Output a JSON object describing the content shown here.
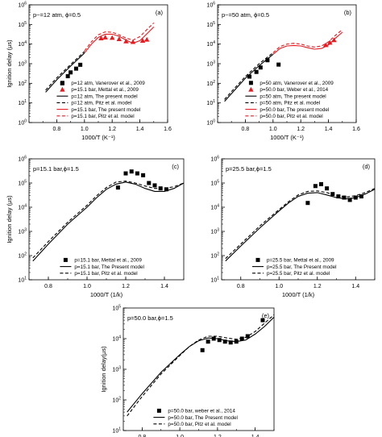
{
  "chart_data": [
    {
      "id": "a",
      "type": "line",
      "panel_label": "(a)",
      "condition": "p~=12 atm, ϕ=0.5",
      "xlabel": "1000/T (K⁻¹)",
      "ylabel": "Ignition delay (μs)",
      "xlim": [
        0.6,
        1.6
      ],
      "xticks": [
        0.8,
        1.0,
        1.2,
        1.4,
        1.6
      ],
      "ylim_exp": [
        0,
        6
      ],
      "yticks_exp": [
        0,
        1,
        2,
        3,
        4,
        5,
        6
      ],
      "legend_position": "bottom-right",
      "series": [
        {
          "name": "p=12 atm, Vanerover et al., 2009",
          "style": "square",
          "color": "#000000",
          "points": [
            [
              0.84,
              100
            ],
            [
              0.88,
              230
            ],
            [
              0.9,
              360
            ],
            [
              0.94,
              560
            ],
            [
              0.97,
              880
            ]
          ]
        },
        {
          "name": "p=15.1 bar, Mettal et al., 2009",
          "style": "triangle",
          "color": "#e8191f",
          "points": [
            [
              1.12,
              20000
            ],
            [
              1.15,
              22000
            ],
            [
              1.2,
              21000
            ],
            [
              1.25,
              18000
            ],
            [
              1.3,
              14000
            ],
            [
              1.35,
              13000
            ],
            [
              1.42,
              15000
            ],
            [
              1.45,
              17000
            ]
          ]
        },
        {
          "name": "p=12 atm, The present model",
          "style": "solid",
          "color": "#000000",
          "points": [
            [
              0.72,
              35
            ],
            [
              0.8,
              150
            ],
            [
              0.9,
              750
            ],
            [
              1.0,
              3500
            ]
          ]
        },
        {
          "name": "p=12 atm,  Pitz et al. model",
          "style": "dashed",
          "color": "#000000",
          "points": [
            [
              0.72,
              45
            ],
            [
              0.8,
              190
            ],
            [
              0.9,
              900
            ],
            [
              1.0,
              4200
            ]
          ]
        },
        {
          "name": "p=15.1 bar, The present model",
          "style": "solid",
          "color": "#e8191f",
          "points": [
            [
              1.0,
              3500
            ],
            [
              1.05,
              10000
            ],
            [
              1.1,
              22000
            ],
            [
              1.15,
              32000
            ],
            [
              1.2,
              32000
            ],
            [
              1.25,
              25000
            ],
            [
              1.3,
              16000
            ],
            [
              1.35,
              11000
            ],
            [
              1.4,
              15000
            ],
            [
              1.45,
              33000
            ],
            [
              1.5,
              75000
            ]
          ]
        },
        {
          "name": "p=15.1 bar,  Pitz et al. model",
          "style": "dashed",
          "color": "#e8191f",
          "points": [
            [
              1.0,
              4500
            ],
            [
              1.05,
              13000
            ],
            [
              1.1,
              30000
            ],
            [
              1.15,
              42000
            ],
            [
              1.2,
              40000
            ],
            [
              1.25,
              30000
            ],
            [
              1.3,
              20000
            ],
            [
              1.35,
              16000
            ],
            [
              1.4,
              24000
            ],
            [
              1.45,
              55000
            ],
            [
              1.5,
              120000
            ]
          ]
        }
      ]
    },
    {
      "id": "b",
      "type": "line",
      "panel_label": "(b)",
      "condition": "p~=50 atm, ϕ=0.5",
      "xlabel": "1000/T (K⁻¹)",
      "ylabel": "",
      "xlim": [
        0.6,
        1.6
      ],
      "xticks": [
        0.8,
        1.0,
        1.2,
        1.4,
        1.6
      ],
      "ylim_exp": [
        0,
        6
      ],
      "yticks_exp": [
        0,
        1,
        2,
        3,
        4,
        5,
        6
      ],
      "legend_position": "bottom-right",
      "series": [
        {
          "name": "p=50 atm, Vanerover et al., 2009",
          "style": "square",
          "color": "#000000",
          "points": [
            [
              0.83,
              220
            ],
            [
              0.88,
              380
            ],
            [
              0.91,
              640
            ],
            [
              0.96,
              1500
            ],
            [
              1.04,
              900
            ]
          ]
        },
        {
          "name": "p=50.0 bar, Weber et al., 2014",
          "style": "triangle",
          "color": "#e8191f",
          "points": [
            [
              1.38,
              9000
            ],
            [
              1.41,
              12000
            ],
            [
              1.44,
              16000
            ]
          ]
        },
        {
          "name": "p=50 atm, The present model",
          "style": "solid",
          "color": "#000000",
          "points": [
            [
              0.65,
              12
            ],
            [
              0.7,
              30
            ],
            [
              0.8,
              180
            ],
            [
              0.9,
              800
            ],
            [
              1.0,
              3000
            ]
          ]
        },
        {
          "name": "p=50 atm,  Pitz et al. model",
          "style": "dashed",
          "color": "#000000",
          "points": [
            [
              0.65,
              15
            ],
            [
              0.7,
              38
            ],
            [
              0.8,
              220
            ],
            [
              0.9,
              1000
            ],
            [
              1.0,
              3600
            ]
          ]
        },
        {
          "name": "p=50.0 bar, The present model",
          "style": "solid",
          "color": "#e8191f",
          "points": [
            [
              1.0,
              3000
            ],
            [
              1.05,
              6000
            ],
            [
              1.1,
              8000
            ],
            [
              1.15,
              8500
            ],
            [
              1.2,
              8000
            ],
            [
              1.25,
              6500
            ],
            [
              1.3,
              5500
            ],
            [
              1.35,
              6000
            ],
            [
              1.4,
              9000
            ],
            [
              1.45,
              20000
            ],
            [
              1.5,
              40000
            ]
          ]
        },
        {
          "name": "p=50.0 bar,  Pitz et al. model",
          "style": "dashed",
          "color": "#e8191f",
          "points": [
            [
              1.0,
              3600
            ],
            [
              1.05,
              7500
            ],
            [
              1.1,
              10000
            ],
            [
              1.15,
              11000
            ],
            [
              1.2,
              10000
            ],
            [
              1.25,
              8000
            ],
            [
              1.3,
              7000
            ],
            [
              1.35,
              8000
            ],
            [
              1.4,
              13000
            ],
            [
              1.45,
              28000
            ],
            [
              1.5,
              55000
            ]
          ]
        }
      ]
    },
    {
      "id": "c",
      "type": "line",
      "panel_label": "(c)",
      "condition": "p=15.1 bar,ϕ=1.5",
      "xlabel": "1000/T (1/k)",
      "ylabel": "Ignition delay (μs)",
      "xlim": [
        0.7,
        1.5
      ],
      "xticks": [
        0.8,
        1.0,
        1.2,
        1.4
      ],
      "ylim_exp": [
        1,
        6
      ],
      "yticks_exp": [
        1,
        2,
        3,
        4,
        5,
        6
      ],
      "legend_position": "bottom-right",
      "series": [
        {
          "name": "p=15.1 bar, Mettal et al., 2009",
          "style": "square",
          "color": "#000000",
          "points": [
            [
              1.16,
              65000
            ],
            [
              1.2,
              250000
            ],
            [
              1.23,
              300000
            ],
            [
              1.26,
              250000
            ],
            [
              1.29,
              210000
            ],
            [
              1.32,
              100000
            ],
            [
              1.35,
              80000
            ],
            [
              1.38,
              60000
            ],
            [
              1.41,
              55000
            ]
          ]
        },
        {
          "name": "p=15.1 bar, The Present model",
          "style": "solid",
          "color": "#000000",
          "points": [
            [
              0.72,
              60
            ],
            [
              0.8,
              300
            ],
            [
              0.9,
              2000
            ],
            [
              1.0,
              10000
            ],
            [
              1.05,
              25000
            ],
            [
              1.1,
              55000
            ],
            [
              1.15,
              90000
            ],
            [
              1.2,
              110000
            ],
            [
              1.25,
              90000
            ],
            [
              1.3,
              60000
            ],
            [
              1.35,
              45000
            ],
            [
              1.4,
              45000
            ],
            [
              1.45,
              60000
            ],
            [
              1.5,
              100000
            ]
          ]
        },
        {
          "name": "p=15.1 bar, Pitz et al. model",
          "style": "dashed",
          "color": "#000000",
          "points": [
            [
              0.72,
              80
            ],
            [
              0.8,
              380
            ],
            [
              0.9,
              2400
            ],
            [
              1.0,
              12000
            ],
            [
              1.05,
              30000
            ],
            [
              1.1,
              65000
            ],
            [
              1.15,
              110000
            ],
            [
              1.2,
              120000
            ],
            [
              1.25,
              100000
            ],
            [
              1.3,
              75000
            ],
            [
              1.35,
              60000
            ],
            [
              1.4,
              60000
            ],
            [
              1.45,
              70000
            ],
            [
              1.5,
              100000
            ]
          ]
        }
      ]
    },
    {
      "id": "d",
      "type": "line",
      "panel_label": "(d)",
      "condition": "p=25.5 bar,ϕ=1.5",
      "xlabel": "1000/T (1/k)",
      "ylabel": "",
      "xlim": [
        0.7,
        1.5
      ],
      "xticks": [
        0.8,
        1.0,
        1.2,
        1.4
      ],
      "ylim_exp": [
        1,
        6
      ],
      "yticks_exp": [
        1,
        2,
        3,
        4,
        5,
        6
      ],
      "legend_position": "bottom-right",
      "series": [
        {
          "name": "p=25.5 bar, Mettal et al., 2009",
          "style": "square",
          "color": "#000000",
          "points": [
            [
              1.15,
              15000
            ],
            [
              1.19,
              75000
            ],
            [
              1.22,
              90000
            ],
            [
              1.25,
              60000
            ],
            [
              1.28,
              35000
            ],
            [
              1.31,
              28000
            ],
            [
              1.34,
              25000
            ],
            [
              1.37,
              20000
            ],
            [
              1.4,
              25000
            ],
            [
              1.43,
              28000
            ]
          ]
        },
        {
          "name": "p=25.5 bar, The Present model",
          "style": "solid",
          "color": "#000000",
          "points": [
            [
              0.72,
              60
            ],
            [
              0.8,
              250
            ],
            [
              0.9,
              1400
            ],
            [
              1.0,
              7000
            ],
            [
              1.05,
              15000
            ],
            [
              1.1,
              28000
            ],
            [
              1.15,
              38000
            ],
            [
              1.2,
              40000
            ],
            [
              1.25,
              32000
            ],
            [
              1.3,
              25000
            ],
            [
              1.35,
              22000
            ],
            [
              1.4,
              25000
            ],
            [
              1.45,
              35000
            ],
            [
              1.5,
              55000
            ]
          ]
        },
        {
          "name": "p=25.5 bar, Pitz et al. model",
          "style": "dashed",
          "color": "#000000",
          "points": [
            [
              0.72,
              75
            ],
            [
              0.8,
              300
            ],
            [
              0.9,
              1700
            ],
            [
              1.0,
              8000
            ],
            [
              1.05,
              17000
            ],
            [
              1.1,
              32000
            ],
            [
              1.15,
              45000
            ],
            [
              1.2,
              47000
            ],
            [
              1.25,
              40000
            ],
            [
              1.3,
              30000
            ],
            [
              1.35,
              26000
            ],
            [
              1.4,
              30000
            ],
            [
              1.45,
              40000
            ],
            [
              1.5,
              60000
            ]
          ]
        }
      ]
    },
    {
      "id": "e",
      "type": "line",
      "panel_label": "(e)",
      "condition": "p=50.0 bar,ϕ=1.5",
      "xlabel": "1000/T (1/k)",
      "ylabel": "Ignition delay(μs)",
      "xlim": [
        0.7,
        1.5
      ],
      "xticks": [
        0.8,
        1.0,
        1.2,
        1.4
      ],
      "ylim_exp": [
        1,
        5
      ],
      "yticks_exp": [
        1,
        2,
        3,
        4,
        5
      ],
      "legend_position": "bottom-right",
      "series": [
        {
          "name": "p=50.0 bar, weber et al., 2014",
          "style": "square",
          "color": "#000000",
          "points": [
            [
              1.12,
              4200
            ],
            [
              1.15,
              8000
            ],
            [
              1.18,
              10000
            ],
            [
              1.21,
              9000
            ],
            [
              1.24,
              8000
            ],
            [
              1.27,
              7500
            ],
            [
              1.3,
              8000
            ],
            [
              1.33,
              10000
            ],
            [
              1.36,
              12000
            ],
            [
              1.44,
              40000
            ]
          ]
        },
        {
          "name": "p=50.0 bar, The Present model",
          "style": "solid",
          "color": "#000000",
          "points": [
            [
              0.72,
              40
            ],
            [
              0.8,
              160
            ],
            [
              0.9,
              800
            ],
            [
              1.0,
              3000
            ],
            [
              1.05,
              5500
            ],
            [
              1.1,
              8500
            ],
            [
              1.15,
              10500
            ],
            [
              1.2,
              10000
            ],
            [
              1.25,
              8500
            ],
            [
              1.3,
              8000
            ],
            [
              1.35,
              9000
            ],
            [
              1.4,
              14000
            ],
            [
              1.45,
              25000
            ],
            [
              1.5,
              50000
            ]
          ]
        },
        {
          "name": "p=50.0 bar,  Pitz et al. model",
          "style": "dashed",
          "color": "#000000",
          "points": [
            [
              0.72,
              30
            ],
            [
              0.8,
              130
            ],
            [
              0.9,
              700
            ],
            [
              1.0,
              2800
            ],
            [
              1.05,
              5500
            ],
            [
              1.1,
              9000
            ],
            [
              1.15,
              12000
            ],
            [
              1.2,
              12000
            ],
            [
              1.25,
              10500
            ],
            [
              1.3,
              9500
            ],
            [
              1.35,
              11000
            ],
            [
              1.4,
              17000
            ],
            [
              1.45,
              32000
            ],
            [
              1.5,
              60000
            ]
          ]
        }
      ]
    }
  ]
}
